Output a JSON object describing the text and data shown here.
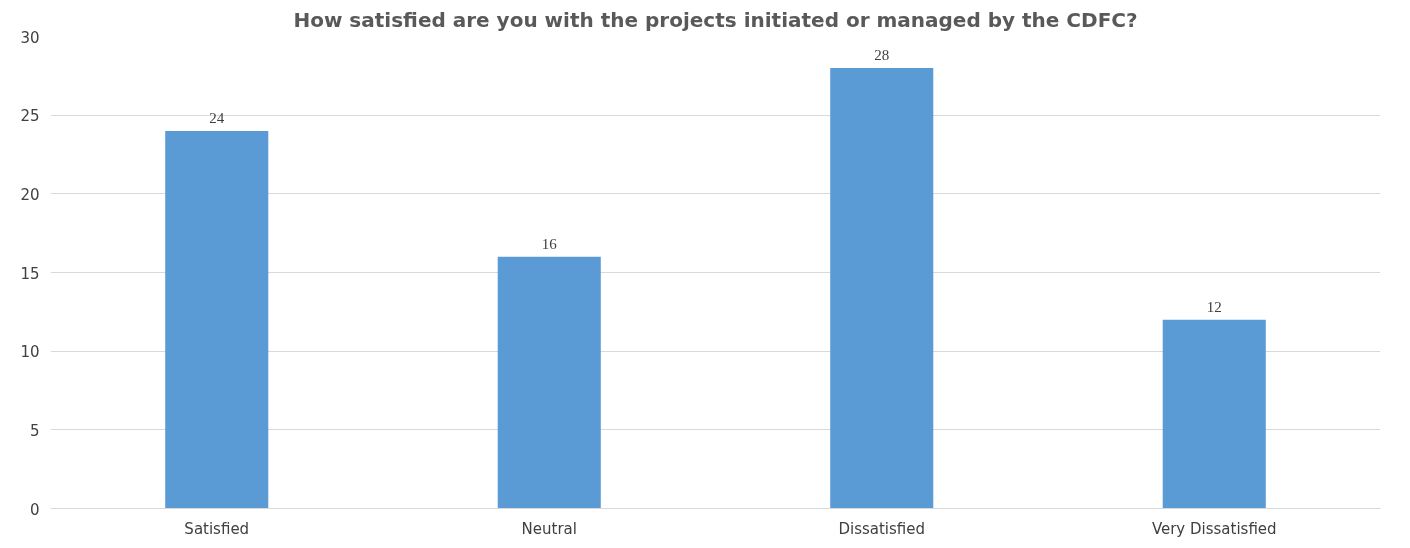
{
  "chart_data": {
    "type": "bar",
    "title": "How satisfied are you with the projects initiated or managed by the CDFC?",
    "categories": [
      "Satisfied",
      "Neutral",
      "Dissatisfied",
      "Very Dissatisfied"
    ],
    "values": [
      24,
      16,
      28,
      12
    ],
    "color": "#5b9bd5",
    "ylim": [
      0,
      30
    ],
    "yticks": [
      0,
      5,
      10,
      15,
      20,
      25,
      30
    ],
    "grid": "y",
    "data_labels": true
  }
}
